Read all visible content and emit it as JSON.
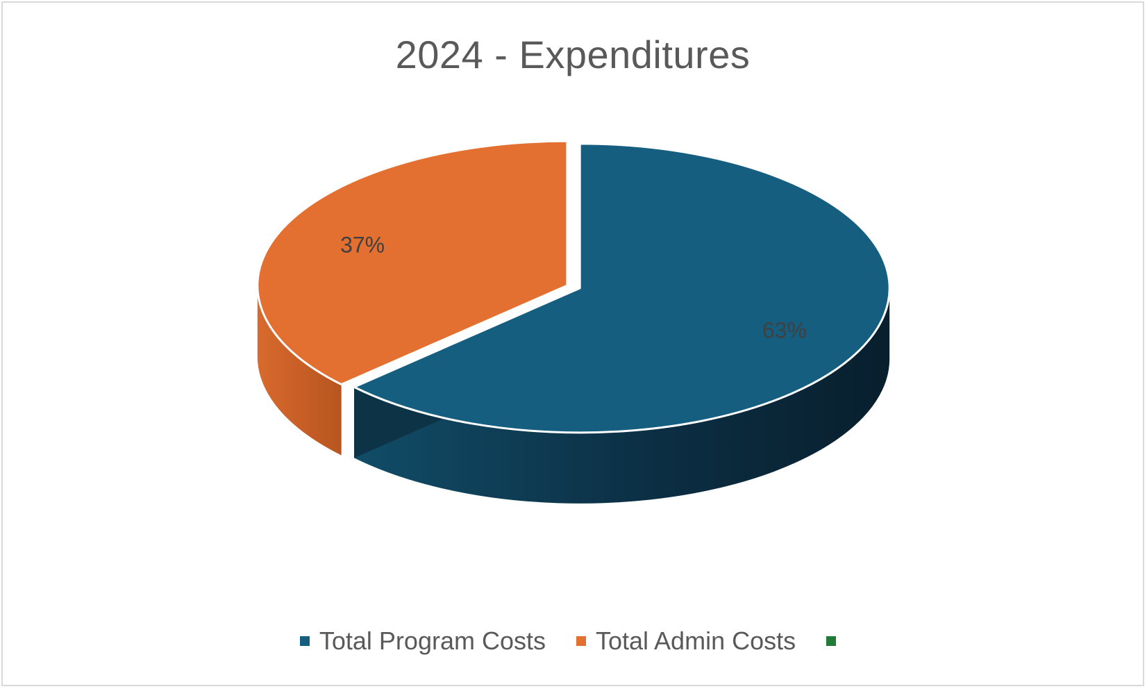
{
  "chart_data": {
    "type": "pie",
    "title": "2024 - Expenditures",
    "categories": [
      "Total Program Costs",
      "Total Admin Costs",
      ""
    ],
    "values": [
      63,
      37,
      0
    ],
    "data_labels": [
      "63%",
      "37%",
      ""
    ],
    "colors": [
      "#165e80",
      "#e37030",
      "#217a35"
    ],
    "legend_position": "bottom",
    "style": "3d-exploded"
  }
}
